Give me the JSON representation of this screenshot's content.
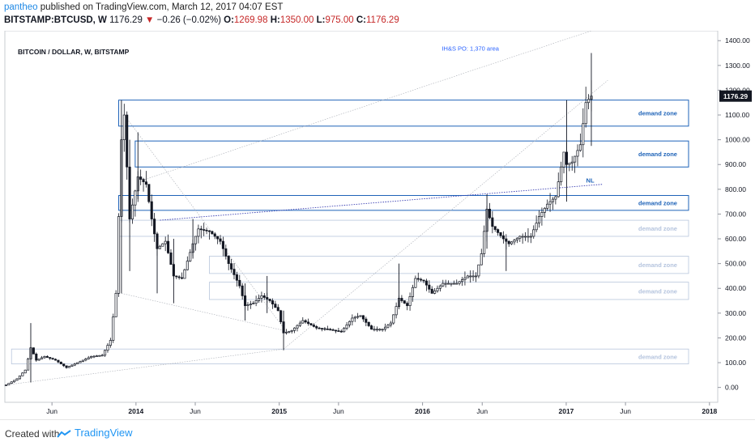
{
  "header": {
    "author": "pantheo",
    "published_text": "published on TradingView.com, March 12, 2017 04:07 EST",
    "symbol": "BITSTAMP:BTCUSD, W",
    "last": "1176.29",
    "change_arrow": "▼",
    "change": "−0.26 (−0.02%)",
    "open_label": "O:",
    "open": "1269.98",
    "high_label": "H:",
    "high": "1350.00",
    "low_label": "L:",
    "low": "975.00",
    "close_label": "C:",
    "close": "1176.29"
  },
  "footer": {
    "created_with": "Created with",
    "brand": "TradingView",
    "brand_icon": "tradingview-logo-icon"
  },
  "colors": {
    "bull": "#131722",
    "bear": "#131722",
    "zone": "#1e63b8",
    "zone_faint": "#b8c6dc",
    "annotation": "#2962ff",
    "price_badge": "#131722"
  },
  "chart_data": {
    "type": "candlestick",
    "title": "BITCOIN / DOLLAR, W, BITSTAMP",
    "x_ticks": [
      "Jun",
      "2014",
      "Jun",
      "2015",
      "Jun",
      "2016",
      "Jun",
      "2017",
      "Jun",
      "2018"
    ],
    "x_tick_dates": [
      "2013-06-01",
      "2014-01-01",
      "2014-06-01",
      "2015-01-01",
      "2015-06-01",
      "2016-01-01",
      "2016-06-01",
      "2017-01-01",
      "2017-06-01",
      "2018-01-01"
    ],
    "y_ticks": [
      "0.00",
      "100.00",
      "200.00",
      "300.00",
      "400.00",
      "500.00",
      "600.00",
      "700.00",
      "800.00",
      "900.00",
      "1000.00",
      "1100.00",
      "1200.00",
      "1300.00",
      "1400.00"
    ],
    "ylim": [
      -60,
      1440
    ],
    "xlim": [
      "2013-02-01",
      "2018-01-22"
    ],
    "last_price": 1176.29,
    "last_price_label": "1176.29",
    "price_points": [
      [
        "2013-02-04",
        10
      ],
      [
        "2013-03-04",
        35
      ],
      [
        "2013-03-25",
        70
      ],
      [
        "2013-04-08",
        160
      ],
      [
        "2013-04-22",
        110
      ],
      [
        "2013-05-13",
        125
      ],
      [
        "2013-06-10",
        110
      ],
      [
        "2013-07-08",
        80
      ],
      [
        "2013-08-05",
        100
      ],
      [
        "2013-09-09",
        125
      ],
      [
        "2013-10-07",
        130
      ],
      [
        "2013-10-28",
        190
      ],
      [
        "2013-11-11",
        380
      ],
      [
        "2013-11-25",
        1000
      ],
      [
        "2013-12-02",
        1100
      ],
      [
        "2013-12-16",
        680
      ],
      [
        "2014-01-06",
        850
      ],
      [
        "2014-01-27",
        820
      ],
      [
        "2014-02-10",
        680
      ],
      [
        "2014-02-24",
        560
      ],
      [
        "2014-03-17",
        590
      ],
      [
        "2014-04-07",
        450
      ],
      [
        "2014-04-28",
        440
      ],
      [
        "2014-05-26",
        580
      ],
      [
        "2014-06-09",
        640
      ],
      [
        "2014-07-07",
        630
      ],
      [
        "2014-08-04",
        590
      ],
      [
        "2014-08-25",
        500
      ],
      [
        "2014-09-22",
        410
      ],
      [
        "2014-10-06",
        330
      ],
      [
        "2014-10-27",
        340
      ],
      [
        "2014-11-17",
        370
      ],
      [
        "2014-12-08",
        350
      ],
      [
        "2014-12-29",
        310
      ],
      [
        "2015-01-12",
        220
      ],
      [
        "2015-02-02",
        230
      ],
      [
        "2015-03-02",
        270
      ],
      [
        "2015-04-06",
        240
      ],
      [
        "2015-05-04",
        235
      ],
      [
        "2015-06-08",
        225
      ],
      [
        "2015-07-06",
        280
      ],
      [
        "2015-07-27",
        290
      ],
      [
        "2015-08-24",
        235
      ],
      [
        "2015-09-21",
        235
      ],
      [
        "2015-10-12",
        260
      ],
      [
        "2015-11-02",
        360
      ],
      [
        "2015-11-23",
        330
      ],
      [
        "2015-12-14",
        440
      ],
      [
        "2016-01-04",
        430
      ],
      [
        "2016-01-25",
        380
      ],
      [
        "2016-02-22",
        420
      ],
      [
        "2016-03-28",
        420
      ],
      [
        "2016-04-25",
        450
      ],
      [
        "2016-05-16",
        450
      ],
      [
        "2016-05-30",
        540
      ],
      [
        "2016-06-13",
        720
      ],
      [
        "2016-06-27",
        650
      ],
      [
        "2016-07-25",
        600
      ],
      [
        "2016-08-08",
        580
      ],
      [
        "2016-09-05",
        610
      ],
      [
        "2016-10-03",
        610
      ],
      [
        "2016-10-24",
        690
      ],
      [
        "2016-11-14",
        740
      ],
      [
        "2016-12-05",
        770
      ],
      [
        "2016-12-26",
        950
      ],
      [
        "2017-01-02",
        900
      ],
      [
        "2017-01-16",
        910
      ],
      [
        "2017-02-06",
        980
      ],
      [
        "2017-02-20",
        1150
      ],
      [
        "2017-03-06",
        1176.29
      ]
    ],
    "wicks": [
      [
        "2013-04-08",
        20,
        260
      ],
      [
        "2013-11-25",
        380,
        1160
      ],
      [
        "2013-12-16",
        470,
        1000
      ],
      [
        "2014-01-06",
        760,
        1030
      ],
      [
        "2014-02-24",
        380,
        600
      ],
      [
        "2014-04-07",
        340,
        600
      ],
      [
        "2014-05-26",
        520,
        680
      ],
      [
        "2014-10-06",
        270,
        420
      ],
      [
        "2014-12-01",
        300,
        450
      ],
      [
        "2015-01-12",
        150,
        310
      ],
      [
        "2015-11-02",
        320,
        500
      ],
      [
        "2016-06-13",
        560,
        780
      ],
      [
        "2016-08-01",
        470,
        600
      ],
      [
        "2017-01-02",
        750,
        1160
      ],
      [
        "2017-03-06",
        975,
        1350
      ]
    ],
    "zones": [
      {
        "label": "demand zone",
        "from": "2013-11-18",
        "top": 1160,
        "bottom": 1055,
        "strength": "strong"
      },
      {
        "label": "demand zone",
        "from": "2013-12-30",
        "top": 995,
        "bottom": 890,
        "strength": "strong"
      },
      {
        "label": "demand zone",
        "from": "2013-11-18",
        "top": 775,
        "bottom": 715,
        "strength": "strong"
      },
      {
        "label": "demand zone",
        "from": "2013-11-18",
        "top": 675,
        "bottom": 610,
        "strength": "faint"
      },
      {
        "label": "demand zone",
        "from": "2014-07-07",
        "top": 530,
        "bottom": 460,
        "strength": "faint"
      },
      {
        "label": "demand zone",
        "from": "2014-07-07",
        "top": 425,
        "bottom": 355,
        "strength": "faint"
      },
      {
        "label": "demand zone",
        "from": "2013-02-18",
        "top": 155,
        "bottom": 95,
        "strength": "faint"
      }
    ],
    "neckline": {
      "label": "NL",
      "from": [
        "2014-03-03",
        675
      ],
      "to": [
        "2017-04-03",
        820
      ]
    },
    "trendlines": [
      {
        "from": [
          "2013-02-04",
          10
        ],
        "to": [
          "2015-01-12",
          155
        ]
      },
      {
        "from": [
          "2015-01-12",
          155
        ],
        "to": [
          "2017-04-17",
          1240
        ]
      },
      {
        "from": [
          "2013-12-02",
          1100
        ],
        "to": [
          "2015-01-12",
          240
        ]
      },
      {
        "from": [
          "2013-11-25",
          380
        ],
        "to": [
          "2015-01-12",
          230
        ]
      },
      {
        "from": [
          "2014-01-06",
          830
        ],
        "to": [
          "2017-03-06",
          1440
        ]
      }
    ],
    "annotations": [
      {
        "text": "IH&S PO: 1,370 area",
        "at": [
          "2016-05-02",
          1360
        ]
      }
    ]
  }
}
